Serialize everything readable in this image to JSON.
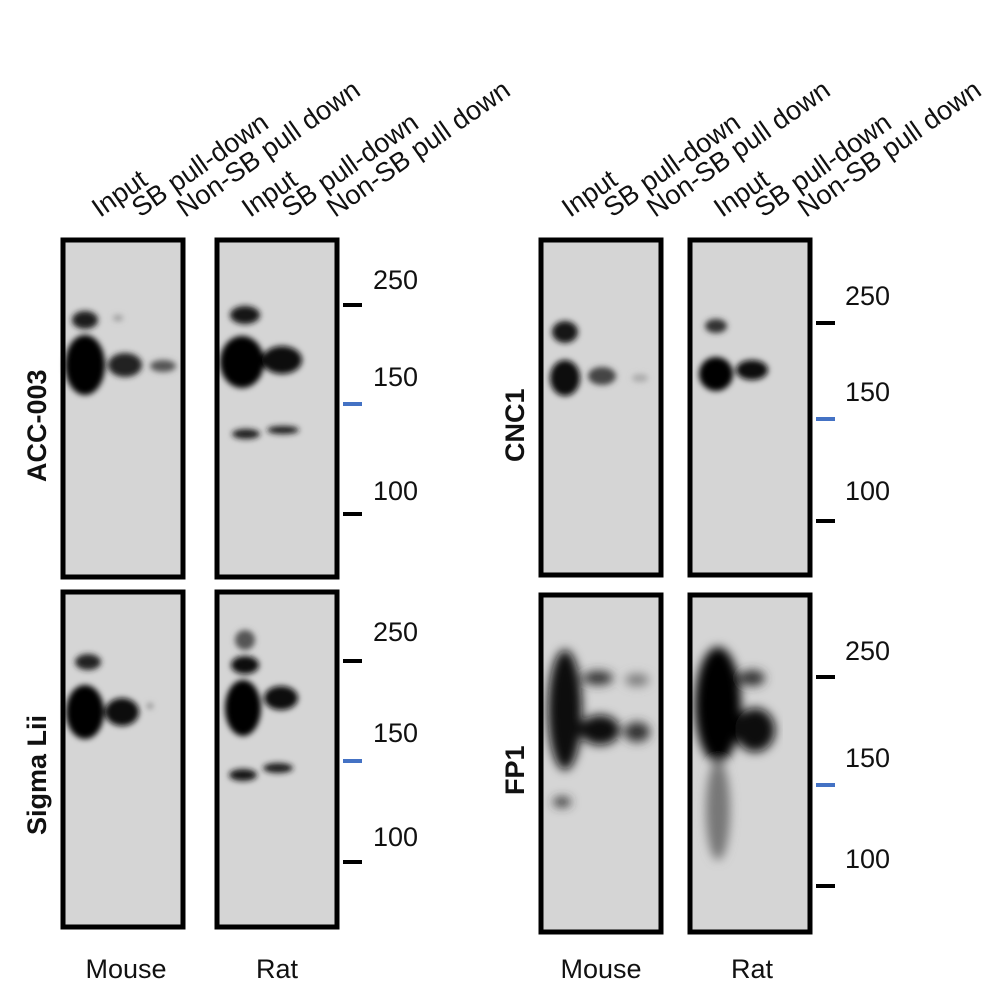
{
  "lanes": [
    "Input",
    "SB pull-down",
    "Non-SB pull down"
  ],
  "species": [
    "Mouse",
    "Rat"
  ],
  "antibodies": {
    "top_left": "ACC-003",
    "bottom_left": "Sigma Lii",
    "top_right": "CNC1",
    "bottom_right": "FP1"
  },
  "markers": [
    "250",
    "150",
    "100"
  ],
  "colors": {
    "membrane": "#d7d7d7",
    "band": "#0a0a0a",
    "frame": "#000000",
    "blue_marker": "#4472c4"
  }
}
